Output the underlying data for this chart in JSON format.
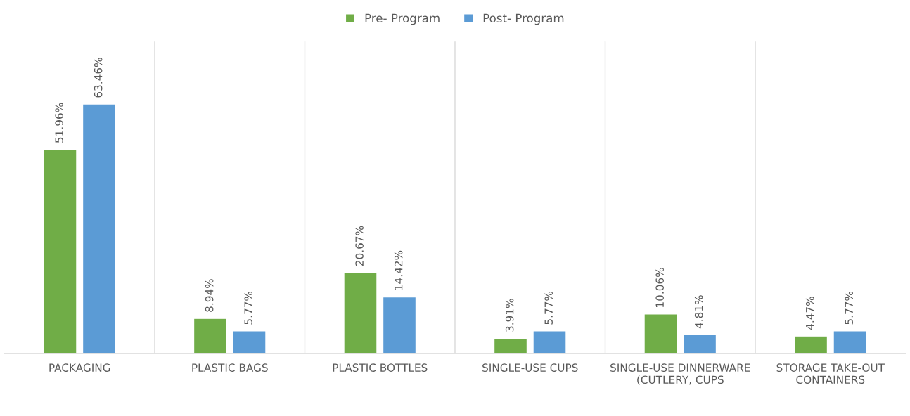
{
  "chart_data": {
    "type": "bar",
    "categories": [
      "PACKAGING",
      "PLASTIC BAGS",
      "PLASTIC BOTTLES",
      "SINGLE-USE CUPS",
      "SINGLE-USE DINNERWARE (CUTLERY, CUPS",
      "STORAGE TAKE-OUT CONTAINERS"
    ],
    "series": [
      {
        "name": "Pre- Program",
        "color": "#70ad47",
        "values": [
          51.96,
          8.94,
          20.67,
          3.91,
          10.06,
          4.47
        ],
        "value_labels": [
          "51.96%",
          "8.94%",
          "20.67%",
          "3.91%",
          "10.06%",
          "4.47%"
        ]
      },
      {
        "name": "Post- Program",
        "color": "#5b9bd5",
        "values": [
          63.46,
          5.77,
          14.42,
          5.77,
          4.81,
          5.77
        ],
        "value_labels": [
          "63.46%",
          "5.77%",
          "14.42%",
          "5.77%",
          "4.81%",
          "5.77%"
        ]
      }
    ],
    "grid": "x",
    "legend": "top"
  }
}
